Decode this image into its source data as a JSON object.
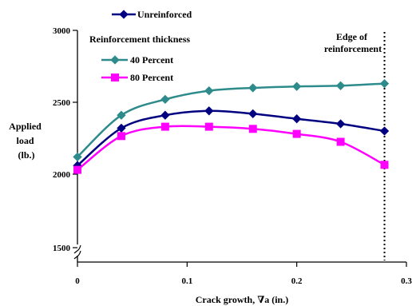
{
  "chart_data": {
    "type": "line",
    "title": "",
    "xlabel": "Crack growth, ∇a (in.)",
    "ylabel": [
      "Applied",
      "load",
      "(lb.)"
    ],
    "xlim": [
      0,
      0.3
    ],
    "ylim": [
      1500,
      3000
    ],
    "x_ticks": [
      0,
      0.1,
      0.2,
      0.3
    ],
    "x_tick_labels": [
      "0",
      "0.1",
      "0.2",
      "0.3"
    ],
    "y_ticks": [
      1500,
      2000,
      2500,
      3000
    ],
    "y_tick_labels": [
      "1500",
      "2000",
      "2500",
      "3000"
    ],
    "grid": false,
    "axis_break": "y-axis near bottom",
    "legend_title": "Reinforcement thickness",
    "annotation": {
      "text": [
        "Edge of",
        "reinforcement"
      ],
      "x": 0.28
    },
    "series": [
      {
        "name": "Unreinforced",
        "color": "#000080",
        "marker": "diamond",
        "x": [
          0,
          0.04,
          0.08,
          0.12,
          0.16,
          0.2,
          0.24,
          0.28
        ],
        "y": [
          2060,
          2320,
          2410,
          2440,
          2420,
          2385,
          2350,
          2300
        ]
      },
      {
        "name": "40 Percent",
        "color": "#2e8b8b",
        "marker": "diamond",
        "x": [
          0,
          0.04,
          0.08,
          0.12,
          0.16,
          0.2,
          0.24,
          0.28
        ],
        "y": [
          2120,
          2410,
          2520,
          2580,
          2600,
          2610,
          2615,
          2630
        ]
      },
      {
        "name": "80 Percent",
        "color": "#ff00ff",
        "marker": "square",
        "x": [
          0,
          0.04,
          0.08,
          0.12,
          0.16,
          0.2,
          0.24,
          0.28
        ],
        "y": [
          2030,
          2265,
          2330,
          2330,
          2315,
          2280,
          2225,
          2065
        ]
      }
    ]
  }
}
